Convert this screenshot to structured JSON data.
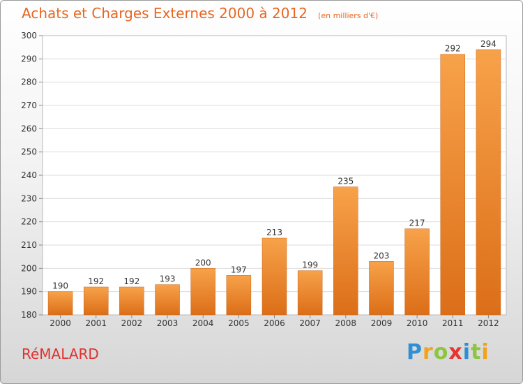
{
  "chart_data": {
    "type": "bar",
    "title": "Achats et Charges Externes 2000 à 2012",
    "unit": "(en milliers d'€)",
    "categories": [
      "2000",
      "2001",
      "2002",
      "2003",
      "2004",
      "2005",
      "2006",
      "2007",
      "2008",
      "2009",
      "2010",
      "2011",
      "2012"
    ],
    "values": [
      190,
      192,
      192,
      193,
      200,
      197,
      213,
      199,
      235,
      203,
      217,
      292,
      294
    ],
    "ylim": [
      180,
      300
    ],
    "yticks": [
      180,
      190,
      200,
      210,
      220,
      230,
      240,
      250,
      260,
      270,
      280,
      290,
      300
    ],
    "grid": true,
    "bar_color": "#f08a2c"
  },
  "place": "RéMALARD",
  "logo": {
    "letters": [
      "P",
      "r",
      "o",
      "x",
      "i",
      "t",
      "i"
    ],
    "colors": [
      "#2f8fd5",
      "#f2a31c",
      "#8cc63f",
      "#e8332f",
      "#2f8fd5",
      "#8cc63f",
      "#f2a31c"
    ]
  }
}
